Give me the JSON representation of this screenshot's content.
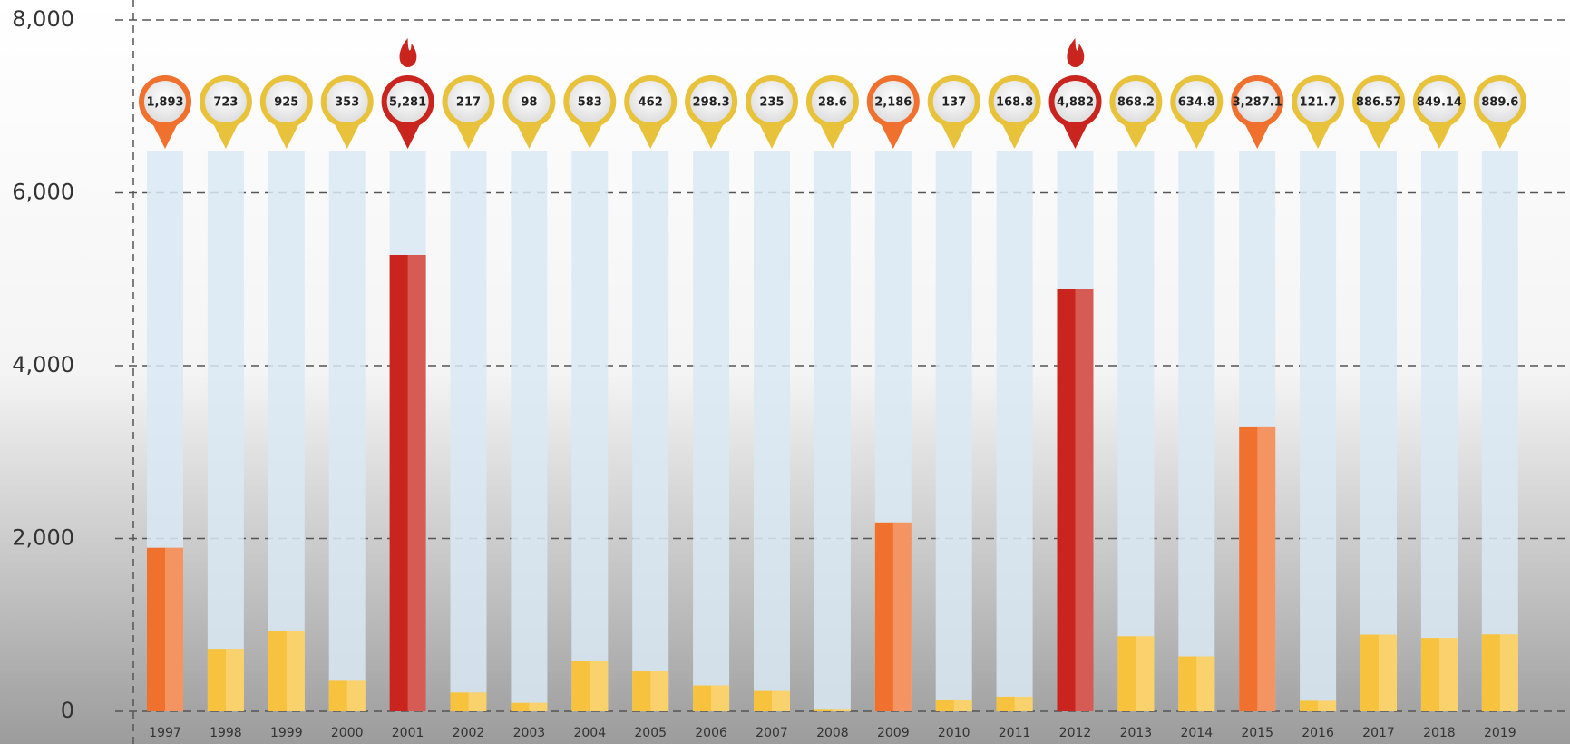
{
  "chart_data": {
    "type": "bar",
    "categories": [
      "1997",
      "1998",
      "1999",
      "2000",
      "2001",
      "2002",
      "2003",
      "2004",
      "2005",
      "2006",
      "2007",
      "2008",
      "2009",
      "2010",
      "2011",
      "2012",
      "2013",
      "2014",
      "2015",
      "2016",
      "2017",
      "2018",
      "2019"
    ],
    "values": [
      1893,
      723,
      925,
      353,
      5281,
      217,
      98,
      583,
      462,
      298.3,
      235,
      28.6,
      2186,
      137,
      168.8,
      4882,
      868.2,
      634.8,
      3287.1,
      121.7,
      886.57,
      849.14,
      889.6
    ],
    "value_labels": [
      "1,893",
      "723",
      "925",
      "353",
      "5,281",
      "217",
      "98",
      "583",
      "462",
      "298.3",
      "235",
      "28.6",
      "2,186",
      "137",
      "168.8",
      "4,882",
      "868.2",
      "634.8",
      "3,287.1",
      "121.7",
      "886.57",
      "849.14",
      "889.6"
    ],
    "colors": [
      "#f0702e",
      "#f7c23d",
      "#f7c23d",
      "#f7c23d",
      "#c9241d",
      "#f7c23d",
      "#f7c23d",
      "#f7c23d",
      "#f7c23d",
      "#f7c23d",
      "#f7c23d",
      "#f7c23d",
      "#f0702e",
      "#f7c23d",
      "#f7c23d",
      "#c9241d",
      "#f7c23d",
      "#f7c23d",
      "#f0702e",
      "#f7c23d",
      "#f7c23d",
      "#f7c23d",
      "#f7c23d"
    ],
    "ylim": [
      0,
      8000
    ],
    "yticks": [
      0,
      {
        "value": 2000,
        "label": "2,000"
      },
      {
        "value": 4000,
        "label": "4,000"
      },
      {
        "value": 6000,
        "label": "6,000"
      },
      {
        "value": 8000,
        "label": "8,000"
      }
    ],
    "grid": true
  }
}
